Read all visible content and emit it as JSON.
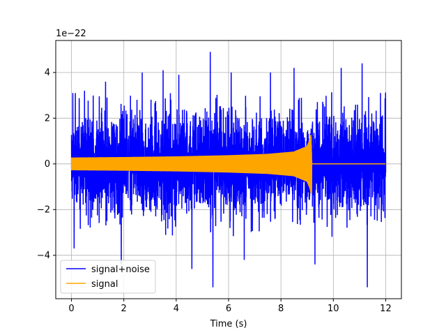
{
  "chart_data": {
    "type": "line",
    "title": "",
    "xlabel": "Time (s)",
    "ylabel": "",
    "y_offset_text": "1e−22",
    "xlim": [
      -0.6,
      12.6
    ],
    "ylim": [
      -5.9,
      5.4
    ],
    "x_ticks": [
      0,
      2,
      4,
      6,
      8,
      10,
      12
    ],
    "x_tick_labels": [
      "0",
      "2",
      "4",
      "6",
      "8",
      "10",
      "12"
    ],
    "y_ticks": [
      -4,
      -2,
      0,
      2,
      4
    ],
    "y_tick_labels": [
      "−4",
      "−2",
      "0",
      "2",
      "4"
    ],
    "grid": true,
    "legend_position": "lower-left",
    "series": [
      {
        "name": "signal+noise",
        "color": "#0000ff",
        "x_range": [
          0,
          12
        ],
        "typical_envelope": [
          -2.6,
          2.6
        ],
        "observed_max": 5.0,
        "observed_min": -5.4,
        "notable_peaks": [
          {
            "x": 0.05,
            "y": 3.1
          },
          {
            "x": 0.1,
            "y": -3.7
          },
          {
            "x": 0.5,
            "y": 3.2
          },
          {
            "x": 1.3,
            "y": 3.6
          },
          {
            "x": 1.9,
            "y": -4.4
          },
          {
            "x": 2.7,
            "y": 4.0
          },
          {
            "x": 3.5,
            "y": 4.1
          },
          {
            "x": 4.1,
            "y": 3.9
          },
          {
            "x": 4.6,
            "y": -4.6
          },
          {
            "x": 5.3,
            "y": 4.9
          },
          {
            "x": 5.4,
            "y": -5.4
          },
          {
            "x": 6.1,
            "y": 4.0
          },
          {
            "x": 6.6,
            "y": -4.2
          },
          {
            "x": 7.6,
            "y": 4.0
          },
          {
            "x": 8.5,
            "y": 4.2
          },
          {
            "x": 9.3,
            "y": -4.4
          },
          {
            "x": 10.3,
            "y": 4.2
          },
          {
            "x": 11.1,
            "y": 4.4
          },
          {
            "x": 11.3,
            "y": -5.4
          },
          {
            "x": 11.8,
            "y": 3.1
          }
        ]
      },
      {
        "name": "signal",
        "color": "#ffa500",
        "x_range": [
          0,
          12
        ],
        "envelope": [
          {
            "x": 0,
            "y": 0.28
          },
          {
            "x": 2,
            "y": 0.3
          },
          {
            "x": 4,
            "y": 0.33
          },
          {
            "x": 6,
            "y": 0.38
          },
          {
            "x": 7.5,
            "y": 0.44
          },
          {
            "x": 8.5,
            "y": 0.54
          },
          {
            "x": 9.0,
            "y": 0.78
          },
          {
            "x": 9.1,
            "y": 1.05
          },
          {
            "x": 9.15,
            "y": 1.3
          },
          {
            "x": 9.18,
            "y": 0
          },
          {
            "x": 12,
            "y": 0
          }
        ],
        "negative_peak_near_merger": -1.35
      }
    ]
  }
}
